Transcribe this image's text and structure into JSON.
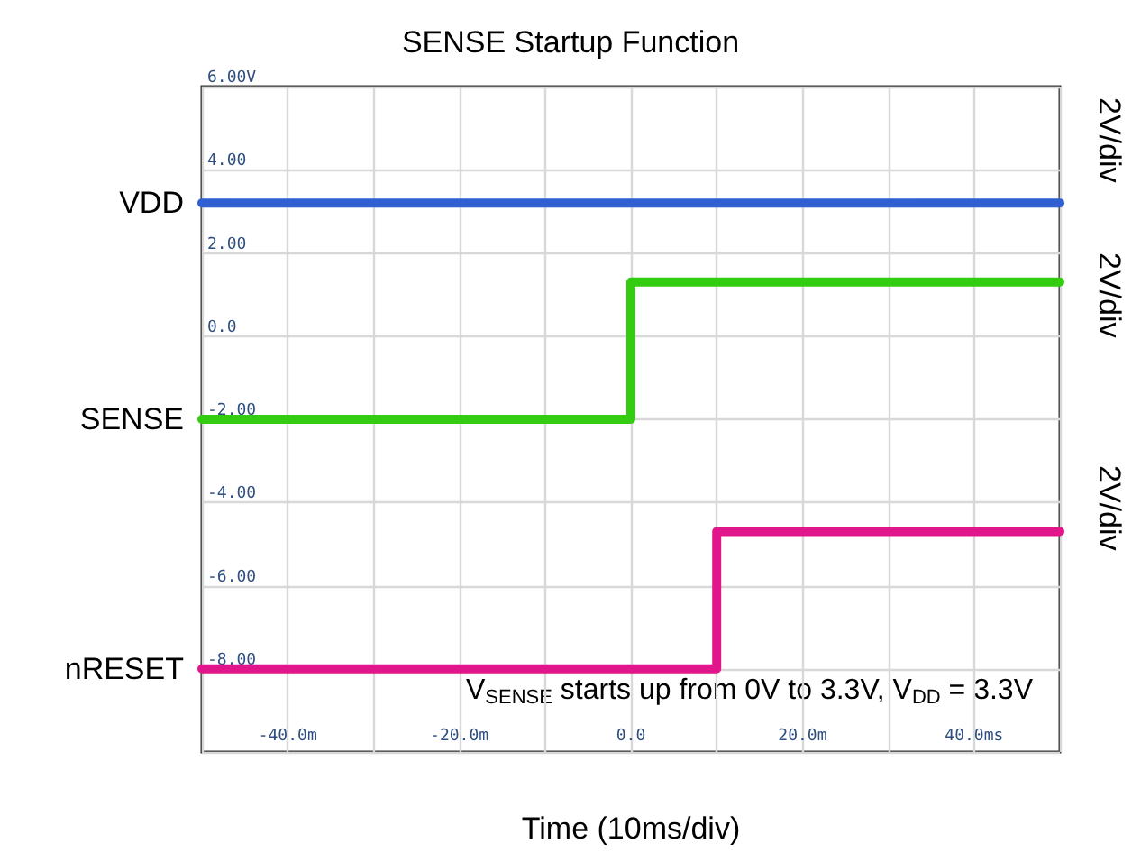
{
  "chart_data": {
    "type": "line",
    "title": "SENSE Startup Function",
    "xlabel": "Time (10ms/div)",
    "annotations": [
      "2V/div",
      "2V/div",
      "2V/div",
      "V$_{SENSE}$ starts up from 0V to 3.3V, V$_{DD}$ = 3.3V"
    ],
    "xlim": [
      -50,
      50
    ],
    "xticks": [
      {
        "value": -50,
        "label": null
      },
      {
        "value": -40,
        "label": "-40.0m"
      },
      {
        "value": -30,
        "label": null
      },
      {
        "value": -20,
        "label": "-20.0m"
      },
      {
        "value": -10,
        "label": null
      },
      {
        "value": 0,
        "label": "0.0"
      },
      {
        "value": 10,
        "label": null
      },
      {
        "value": 20,
        "label": "20.0m"
      },
      {
        "value": 30,
        "label": null
      },
      {
        "value": 40,
        "label": "40.0ms"
      },
      {
        "value": 50,
        "label": null
      }
    ],
    "ylim": [
      -10,
      6
    ],
    "yticks": [
      {
        "value": -10,
        "label": null
      },
      {
        "value": -8,
        "label": "-8.00"
      },
      {
        "value": -6,
        "label": "-6.00"
      },
      {
        "value": -4,
        "label": "-4.00"
      },
      {
        "value": -2,
        "label": "-2.00"
      },
      {
        "value": 0,
        "label": "0.0"
      },
      {
        "value": 2,
        "label": "2.00"
      },
      {
        "value": 4,
        "label": "4.00"
      },
      {
        "value": 6,
        "label": "6.00V"
      }
    ],
    "grid": true,
    "marker": "none",
    "line_style": "solid",
    "legend": false,
    "series": [
      {
        "name": "VDD",
        "color": "#2f5fd0",
        "x": [
          -50,
          50
        ],
        "values": [
          3.2,
          3.2
        ]
      },
      {
        "name": "SENSE",
        "color": "#33cc11",
        "x": [
          -50,
          0,
          0,
          50
        ],
        "values": [
          -2,
          -2,
          1.3,
          1.3
        ]
      },
      {
        "name": "nRESET",
        "color": "#e0168a",
        "x": [
          -50,
          10,
          10,
          50
        ],
        "values": [
          -8,
          -8,
          -4.7,
          -4.7
        ]
      }
    ]
  }
}
